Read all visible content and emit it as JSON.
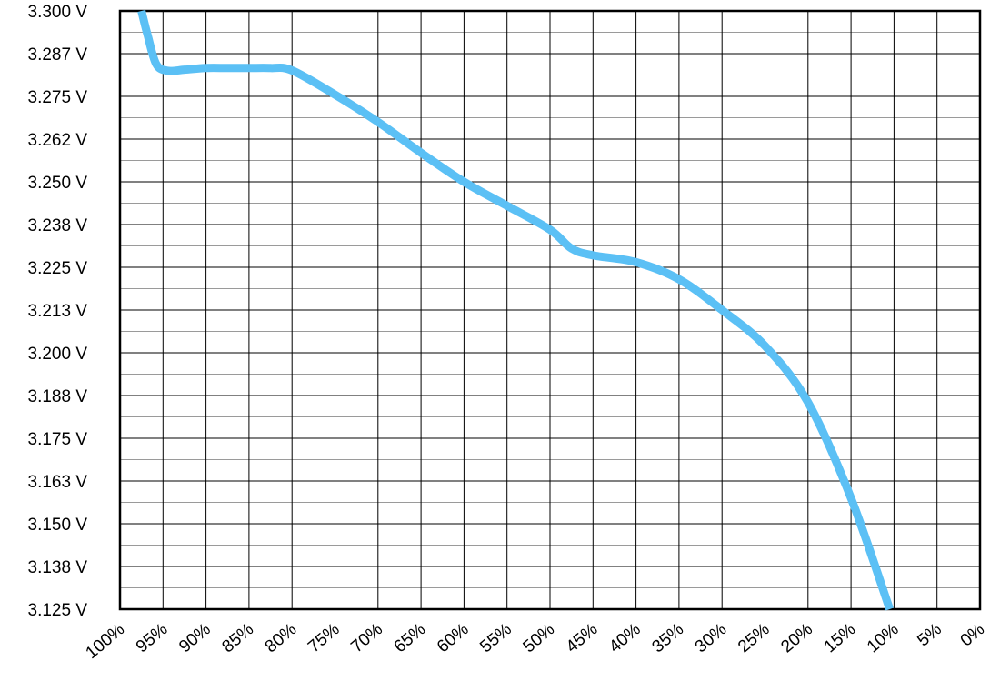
{
  "chart_data": {
    "type": "line",
    "title": "",
    "xlabel": "",
    "ylabel": "",
    "x_axis_reversed": true,
    "xlim": [
      100,
      0
    ],
    "ylim": [
      3.125,
      3.3
    ],
    "grid": true,
    "x_ticks": [
      {
        "value": 100,
        "label": "100%"
      },
      {
        "value": 95,
        "label": "95%"
      },
      {
        "value": 90,
        "label": "90%"
      },
      {
        "value": 85,
        "label": "85%"
      },
      {
        "value": 80,
        "label": "80%"
      },
      {
        "value": 75,
        "label": "75%"
      },
      {
        "value": 70,
        "label": "70%"
      },
      {
        "value": 65,
        "label": "65%"
      },
      {
        "value": 60,
        "label": "60%"
      },
      {
        "value": 55,
        "label": "55%"
      },
      {
        "value": 50,
        "label": "50%"
      },
      {
        "value": 45,
        "label": "45%"
      },
      {
        "value": 40,
        "label": "40%"
      },
      {
        "value": 35,
        "label": "35%"
      },
      {
        "value": 30,
        "label": "30%"
      },
      {
        "value": 25,
        "label": "25%"
      },
      {
        "value": 20,
        "label": "20%"
      },
      {
        "value": 15,
        "label": "15%"
      },
      {
        "value": 10,
        "label": "10%"
      },
      {
        "value": 5,
        "label": "5%"
      },
      {
        "value": 0,
        "label": "0%"
      }
    ],
    "y_ticks": [
      {
        "value": 3.3,
        "label": "3.300 V"
      },
      {
        "value": 3.2875,
        "label": "3.287 V"
      },
      {
        "value": 3.275,
        "label": "3.275 V"
      },
      {
        "value": 3.2625,
        "label": "3.262 V"
      },
      {
        "value": 3.25,
        "label": "3.250 V"
      },
      {
        "value": 3.2375,
        "label": "3.238 V"
      },
      {
        "value": 3.225,
        "label": "3.225 V"
      },
      {
        "value": 3.2125,
        "label": "3.213 V"
      },
      {
        "value": 3.2,
        "label": "3.200 V"
      },
      {
        "value": 3.1875,
        "label": "3.188 V"
      },
      {
        "value": 3.175,
        "label": "3.175 V"
      },
      {
        "value": 3.1625,
        "label": "3.163 V"
      },
      {
        "value": 3.15,
        "label": "3.150 V"
      },
      {
        "value": 3.1375,
        "label": "3.138 V"
      },
      {
        "value": 3.125,
        "label": "3.125 V"
      }
    ],
    "series": [
      {
        "color": "#5bc0f5",
        "x": [
          97.5,
          96.8,
          95.8,
          94.5,
          92.5,
          90,
          87.5,
          85,
          82.5,
          80,
          75,
          70,
          65,
          60,
          55,
          50,
          47.5,
          45,
          40,
          35,
          30,
          25,
          20,
          15,
          10.5
        ],
        "y": [
          3.3,
          3.293,
          3.2845,
          3.2825,
          3.2828,
          3.2833,
          3.2833,
          3.2833,
          3.2833,
          3.2826,
          3.2755,
          3.2675,
          3.2585,
          3.25,
          3.243,
          3.236,
          3.2305,
          3.2285,
          3.2265,
          3.2215,
          3.2125,
          3.202,
          3.1855,
          3.1575,
          3.125
        ]
      }
    ]
  }
}
